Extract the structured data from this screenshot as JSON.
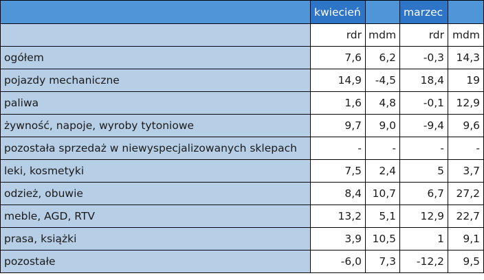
{
  "header": {
    "months": [
      "kwiecień",
      "marzec"
    ],
    "sub": [
      "rdr",
      "mdm",
      "rdr",
      "mdm"
    ]
  },
  "rows": [
    {
      "label": "ogółem",
      "values": [
        "7,6",
        "6,2",
        "-0,3",
        "14,3"
      ]
    },
    {
      "label": "pojazdy mechaniczne",
      "values": [
        "14,9",
        "-4,5",
        "18,4",
        "19"
      ]
    },
    {
      "label": "paliwa",
      "values": [
        "1,6",
        "4,8",
        "-0,1",
        "12,9"
      ]
    },
    {
      "label": "żywność, napoje, wyroby tytoniowe",
      "values": [
        "9,7",
        "9,0",
        "-9,4",
        "9,6"
      ]
    },
    {
      "label": "pozostała sprzedaż w niewyspecjalizowanych sklepach",
      "values": [
        "-",
        "-",
        "-",
        "-"
      ]
    },
    {
      "label": "leki, kosmetyki",
      "values": [
        "7,5",
        "2,4",
        "5",
        "3,7"
      ]
    },
    {
      "label": "odzież, obuwie",
      "values": [
        "8,4",
        "10,7",
        "6,7",
        "27,2"
      ]
    },
    {
      "label": "meble, AGD, RTV",
      "values": [
        "13,2",
        "5,1",
        "12,9",
        "22,7"
      ]
    },
    {
      "label": "prasa, książki",
      "values": [
        "3,9",
        "10,5",
        "1",
        "9,1"
      ]
    },
    {
      "label": "pozostałe",
      "values": [
        "-6,0",
        "7,3",
        "-12,2",
        "9,5"
      ]
    }
  ]
}
